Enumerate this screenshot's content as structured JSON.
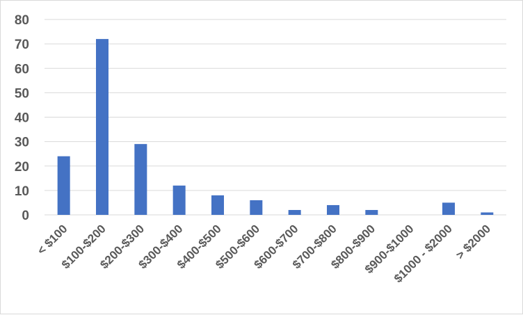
{
  "chart_data": {
    "type": "bar",
    "title": "",
    "xlabel": "",
    "ylabel": "",
    "categories": [
      "< $100",
      "$100-$200",
      "$200-$300",
      "$300-$400",
      "$400-$500",
      "$500-$600",
      "$600-$700",
      "$700-$800",
      "$800-$900",
      "$900-$1000",
      "$1000 - $2000",
      "> $2000"
    ],
    "values": [
      24,
      72,
      29,
      12,
      8,
      6,
      2,
      4,
      2,
      0,
      5,
      1
    ],
    "ylim": [
      0,
      80
    ],
    "yticks": [
      0,
      10,
      20,
      30,
      40,
      50,
      60,
      70,
      80
    ],
    "grid": true,
    "legend": "none",
    "bar_color": "#4472c4",
    "grid_color": "#d9d9d9",
    "tick_color": "#595959"
  }
}
